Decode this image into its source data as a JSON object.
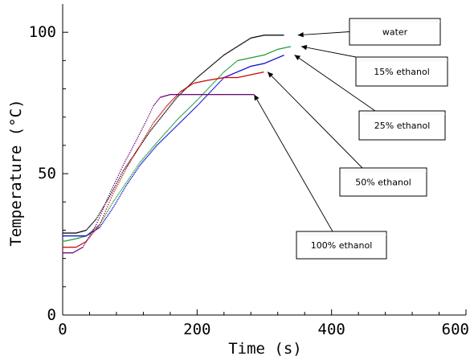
{
  "chart_data": {
    "type": "scatter",
    "title": "",
    "xlabel": "Time (s)",
    "ylabel": "Temperature (°C)",
    "xlim": [
      0,
      600
    ],
    "ylim": [
      0,
      110
    ],
    "x_ticks": [
      0,
      200,
      400,
      600
    ],
    "y_ticks": [
      0,
      50,
      100
    ],
    "grid": false,
    "series": [
      {
        "name": "water",
        "color": "#000000",
        "points": [
          [
            0,
            29
          ],
          [
            20,
            29
          ],
          [
            35,
            30
          ],
          [
            50,
            34
          ],
          [
            70,
            42
          ],
          [
            90,
            51
          ],
          [
            110,
            58
          ],
          [
            130,
            65
          ],
          [
            150,
            71
          ],
          [
            170,
            77
          ],
          [
            200,
            84
          ],
          [
            220,
            88
          ],
          [
            240,
            92
          ],
          [
            260,
            95
          ],
          [
            280,
            98
          ],
          [
            300,
            99
          ],
          [
            330,
            99
          ]
        ]
      },
      {
        "name": "15% ethanol",
        "color": "#1a9a3a",
        "points": [
          [
            0,
            26
          ],
          [
            20,
            27
          ],
          [
            35,
            28
          ],
          [
            55,
            32
          ],
          [
            75,
            40
          ],
          [
            95,
            47
          ],
          [
            115,
            54
          ],
          [
            140,
            61
          ],
          [
            170,
            69
          ],
          [
            200,
            76
          ],
          [
            220,
            81
          ],
          [
            240,
            86
          ],
          [
            260,
            90
          ],
          [
            280,
            91
          ],
          [
            300,
            92
          ],
          [
            320,
            94
          ],
          [
            340,
            95
          ]
        ]
      },
      {
        "name": "25% ethanol",
        "color": "#0000cc",
        "points": [
          [
            0,
            28
          ],
          [
            20,
            28
          ],
          [
            35,
            28
          ],
          [
            55,
            31
          ],
          [
            75,
            38
          ],
          [
            95,
            46
          ],
          [
            115,
            53
          ],
          [
            140,
            60
          ],
          [
            170,
            67
          ],
          [
            200,
            74
          ],
          [
            220,
            79
          ],
          [
            240,
            84
          ],
          [
            260,
            86
          ],
          [
            280,
            88
          ],
          [
            300,
            89
          ],
          [
            320,
            91
          ],
          [
            330,
            92
          ]
        ]
      },
      {
        "name": "50% ethanol",
        "color": "#cc0000",
        "points": [
          [
            0,
            24
          ],
          [
            20,
            24
          ],
          [
            35,
            26
          ],
          [
            55,
            32
          ],
          [
            75,
            43
          ],
          [
            95,
            52
          ],
          [
            115,
            60
          ],
          [
            135,
            68
          ],
          [
            155,
            74
          ],
          [
            175,
            79
          ],
          [
            195,
            82
          ],
          [
            215,
            83
          ],
          [
            240,
            84
          ],
          [
            260,
            84
          ],
          [
            280,
            85
          ],
          [
            300,
            86
          ]
        ]
      },
      {
        "name": "100% ethanol",
        "color": "#660077",
        "points": [
          [
            0,
            22
          ],
          [
            15,
            22
          ],
          [
            30,
            24
          ],
          [
            50,
            32
          ],
          [
            70,
            43
          ],
          [
            90,
            53
          ],
          [
            110,
            62
          ],
          [
            125,
            69
          ],
          [
            135,
            74
          ],
          [
            145,
            77
          ],
          [
            160,
            78
          ],
          [
            200,
            78
          ],
          [
            240,
            78
          ],
          [
            270,
            78
          ],
          [
            285,
            78
          ]
        ]
      }
    ],
    "annotations": [
      {
        "text": "water",
        "target": [
          345,
          99
        ]
      },
      {
        "text": "15% ethanol",
        "target": [
          350,
          95
        ]
      },
      {
        "text": "25% ethanol",
        "target": [
          340,
          92
        ]
      },
      {
        "text": "50% ethanol",
        "target": [
          300,
          86
        ]
      },
      {
        "text": "100% ethanol",
        "target": [
          280,
          78
        ]
      }
    ]
  }
}
